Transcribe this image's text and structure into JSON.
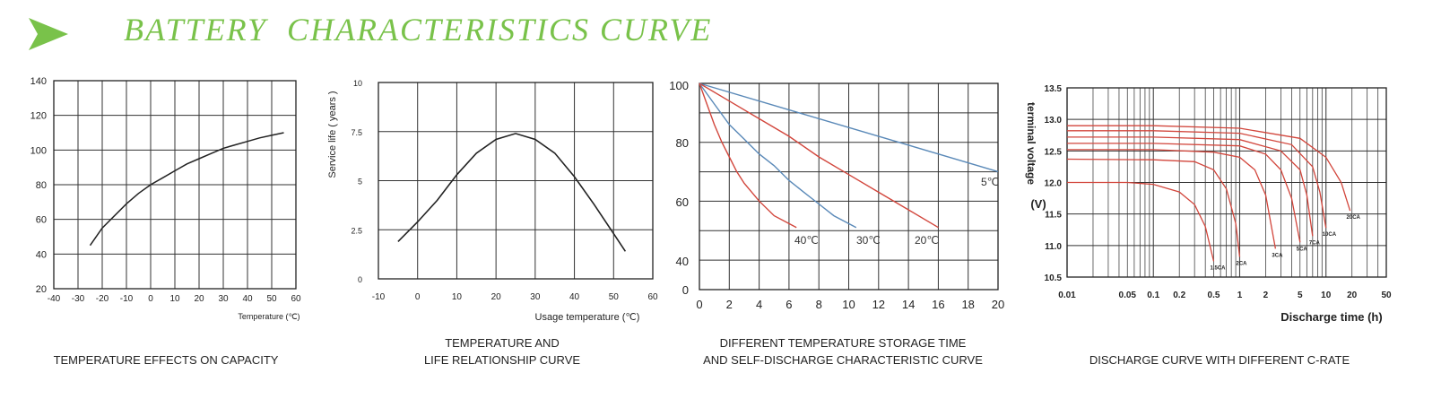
{
  "header": {
    "title": "BATTERY  CHARACTERISTICS CURVE",
    "accent": "#79c24a"
  },
  "chart_data": [
    {
      "type": "line",
      "caption": "TEMPERATURE EFFECTS ON CAPACITY",
      "xlabel": "Temperature  (℃)",
      "ylabel": "",
      "xlim": [
        -40,
        60
      ],
      "ylim": [
        20,
        140
      ],
      "xticks": [
        -40,
        -30,
        -20,
        -10,
        0,
        10,
        20,
        30,
        40,
        50,
        60
      ],
      "yticks": [
        20,
        40,
        60,
        80,
        100,
        120,
        140
      ],
      "grid": true,
      "series": [
        {
          "color": "#222222",
          "x": [
            -25,
            -20,
            -15,
            -10,
            -5,
            0,
            5,
            10,
            15,
            20,
            25,
            30,
            35,
            40,
            45,
            50,
            55
          ],
          "y": [
            45,
            55,
            62,
            69,
            75,
            80,
            84,
            88,
            92,
            95,
            98,
            101,
            103,
            105,
            107,
            108.5,
            110
          ]
        }
      ]
    },
    {
      "type": "line",
      "caption": "TEMPERATURE AND\nLIFE RELATIONSHIP CURVE",
      "xlabel": "Usage temperature  (℃)",
      "ylabel": "Service life ( years )",
      "xlim": [
        -10,
        60
      ],
      "ylim": [
        0,
        10
      ],
      "xticks": [
        -10,
        0,
        10,
        20,
        30,
        40,
        50,
        60
      ],
      "yticks": [
        0,
        2.5,
        5,
        7.5,
        10
      ],
      "ytick_labels": [
        "0",
        "2.5",
        "5",
        "7.5",
        "10"
      ],
      "grid": true,
      "series": [
        {
          "color": "#222222",
          "x": [
            -5,
            0,
            5,
            10,
            15,
            20,
            25,
            30,
            35,
            40,
            45,
            50,
            53
          ],
          "y": [
            1.9,
            2.9,
            4.0,
            5.3,
            6.4,
            7.1,
            7.4,
            7.1,
            6.4,
            5.2,
            3.8,
            2.3,
            1.4
          ]
        }
      ]
    },
    {
      "type": "line",
      "caption": "DIFFERENT TEMPERATURE STORAGE TIME\nAND SELF-DISCHARGE CHARACTERISTIC CURVE",
      "xlabel": "",
      "ylabel": "",
      "xlim": [
        0,
        20
      ],
      "ylim": [
        40,
        100
      ],
      "xticks": [
        0,
        2,
        4,
        6,
        8,
        10,
        12,
        14,
        16,
        18,
        20
      ],
      "ytick_labels_shown": [
        "100",
        "80",
        "60",
        "40",
        "0"
      ],
      "grid": true,
      "series": [
        {
          "name": "5℃",
          "color": "#5a89b8",
          "x": [
            0,
            20
          ],
          "y": [
            100,
            70
          ]
        },
        {
          "name": "20℃",
          "color": "#d2463c",
          "x": [
            0,
            2,
            4,
            6,
            8,
            10,
            12,
            14,
            16
          ],
          "y": [
            100,
            94,
            88,
            82,
            75,
            69,
            63,
            57,
            51
          ]
        },
        {
          "name": "30℃",
          "color": "#5a89b8",
          "x": [
            0,
            1,
            2,
            3,
            4,
            5,
            6,
            7,
            8,
            9,
            10.5
          ],
          "y": [
            100,
            93,
            86,
            81,
            76,
            72,
            67,
            63,
            59,
            55,
            51
          ]
        },
        {
          "name": "40℃",
          "color": "#d2463c",
          "x": [
            0,
            0.5,
            1,
            1.5,
            2,
            2.5,
            3,
            4,
            5,
            6.5
          ],
          "y": [
            100,
            93,
            86,
            80,
            75,
            70,
            66,
            60,
            55,
            51
          ]
        }
      ]
    },
    {
      "type": "line",
      "caption": "DISCHARGE CURVE WITH DIFFERENT C-RATE",
      "xlabel": "Discharge time (h)",
      "ylabel": "terminal voltage\n(V)",
      "xscale": "log",
      "xlim": [
        0.01,
        50
      ],
      "ylim": [
        10.5,
        13.5
      ],
      "xtick_labels": [
        "0.01",
        "0.05",
        "0.1",
        "0.2",
        "0.5",
        "1",
        "2",
        "5",
        "10",
        "20",
        "50"
      ],
      "yticks": [
        10.5,
        11.0,
        11.5,
        12.0,
        12.5,
        13.0,
        13.5
      ],
      "ytick_labels": [
        "10.5",
        "11.0",
        "11.5",
        "12.0",
        "12.5",
        "13.0",
        "13.5"
      ],
      "grid": true,
      "series": [
        {
          "name": "1.5CA",
          "color": "#d2463c",
          "x": [
            0.01,
            0.05,
            0.1,
            0.2,
            0.3,
            0.4,
            0.5
          ],
          "y": [
            12.0,
            12.0,
            11.97,
            11.85,
            11.65,
            11.3,
            10.75
          ]
        },
        {
          "name": "2CA",
          "color": "#d2463c",
          "x": [
            0.01,
            0.1,
            0.3,
            0.5,
            0.7,
            0.9,
            1.0
          ],
          "y": [
            12.37,
            12.36,
            12.33,
            12.2,
            11.9,
            11.35,
            10.82
          ]
        },
        {
          "name": "3CA",
          "color": "#d2463c",
          "x": [
            0.01,
            0.1,
            0.5,
            1.0,
            1.5,
            2.0,
            2.6
          ],
          "y": [
            12.52,
            12.52,
            12.48,
            12.4,
            12.2,
            11.8,
            10.95
          ]
        },
        {
          "name": "5CA",
          "color": "#d2463c",
          "x": [
            0.01,
            0.1,
            1,
            2,
            3,
            4,
            5
          ],
          "y": [
            12.62,
            12.62,
            12.58,
            12.45,
            12.2,
            11.75,
            11.05
          ]
        },
        {
          "name": "7CA",
          "color": "#d2463c",
          "x": [
            0.01,
            0.1,
            1,
            3,
            5,
            6,
            7
          ],
          "y": [
            12.72,
            12.72,
            12.68,
            12.5,
            12.2,
            11.8,
            11.15
          ]
        },
        {
          "name": "10CA",
          "color": "#d2463c",
          "x": [
            0.01,
            0.1,
            1,
            4,
            7,
            8.5,
            10
          ],
          "y": [
            12.82,
            12.82,
            12.78,
            12.6,
            12.25,
            11.85,
            11.28
          ]
        },
        {
          "name": "20CA",
          "color": "#d2463c",
          "x": [
            0.01,
            0.1,
            1,
            5,
            10,
            15,
            19
          ],
          "y": [
            12.9,
            12.9,
            12.86,
            12.7,
            12.4,
            12.0,
            11.55
          ]
        }
      ]
    }
  ]
}
